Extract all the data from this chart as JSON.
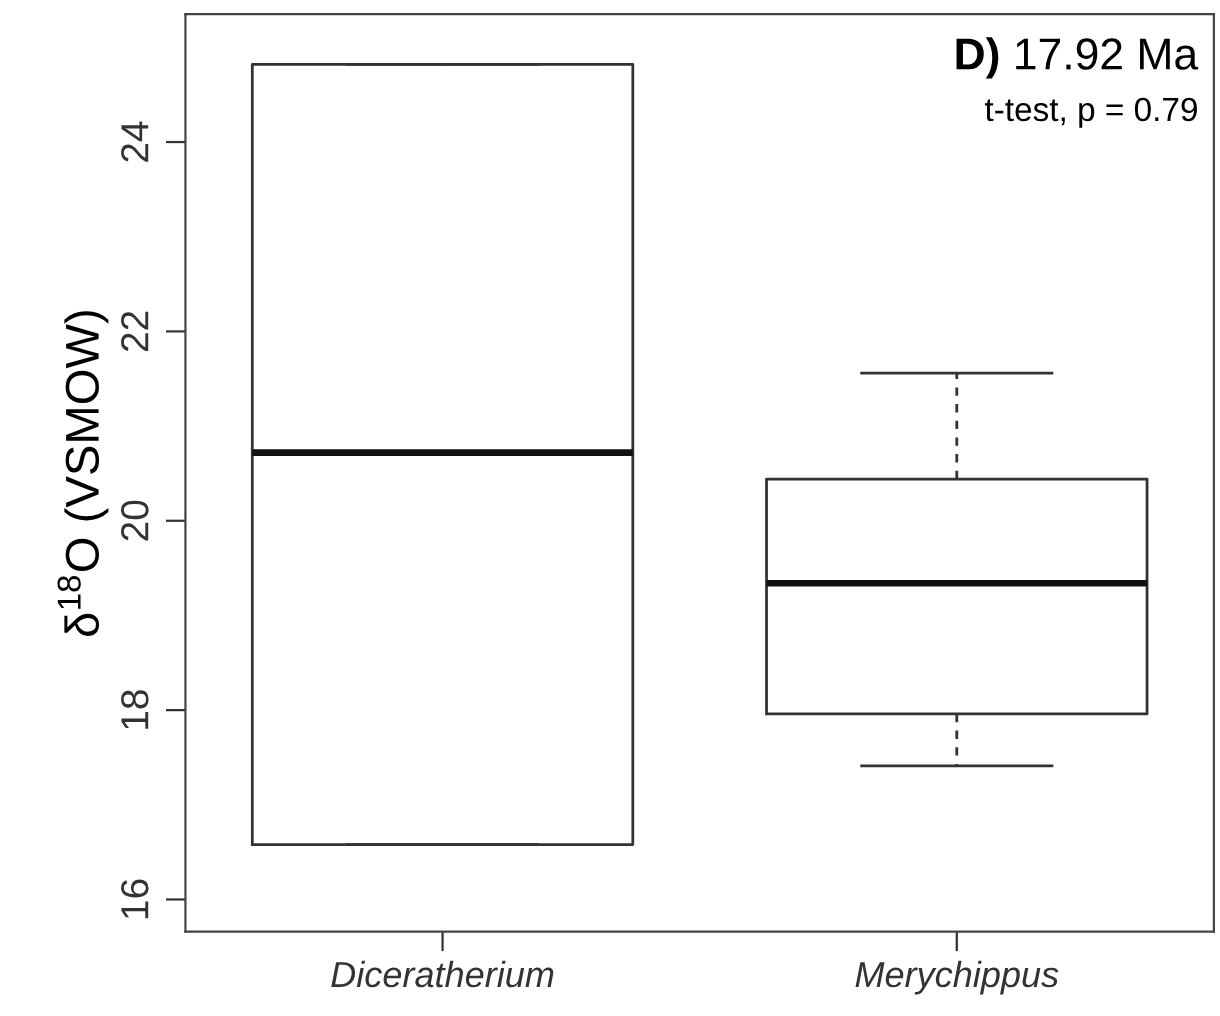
{
  "chart_data": {
    "type": "box",
    "title": "D) 17.92 Ma",
    "annotations": [
      "t-test, p = 0.79"
    ],
    "ylabel": "δ$^{18}$O (VSMOW)",
    "categories": [
      "Diceratherium",
      "Merychippus"
    ],
    "boxes": [
      {
        "low": 16.58,
        "q1": 16.58,
        "median": 20.72,
        "q3": 24.82,
        "high": 24.82
      },
      {
        "low": 17.41,
        "q1": 17.96,
        "median": 19.34,
        "q3": 20.44,
        "high": 21.56
      }
    ],
    "ylim": [
      15.66,
      25.35
    ],
    "yticks": [
      16,
      18,
      20,
      22,
      24
    ],
    "grid": false
  }
}
